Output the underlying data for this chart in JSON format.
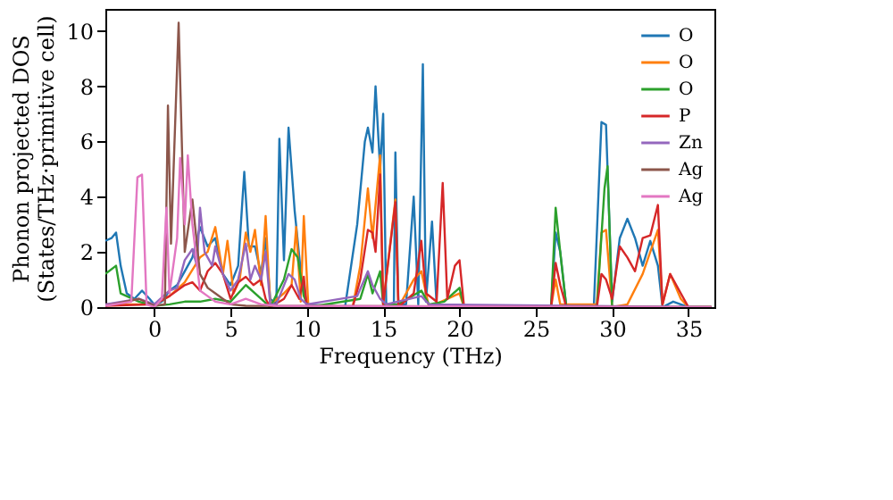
{
  "chart_data": {
    "type": "line",
    "xlabel": "Frequency (THz)",
    "ylabel": "Phonon projected DOS\n(States/THz·primitive cell)",
    "xlim": [
      -3.2,
      36.7
    ],
    "xticks": [
      0,
      5,
      10,
      15,
      20,
      25,
      30,
      35
    ],
    "ylim": [
      0,
      10.8
    ],
    "yticks": [
      0,
      2,
      4,
      6,
      8,
      10
    ],
    "grid": false,
    "legend": "top right",
    "line_style": "solid",
    "marker": "none",
    "series": [
      {
        "name": "O",
        "color": "#1f77b4",
        "x": [
          -3.2,
          -2.8,
          -2.5,
          -2.2,
          -1.8,
          -1.3,
          -0.8,
          -0.3,
          0,
          0.5,
          1,
          1.5,
          2,
          2.5,
          3,
          3.5,
          4,
          4.5,
          5,
          5.5,
          5.9,
          6.2,
          6.6,
          7,
          7.3,
          7.6,
          8,
          8.2,
          8.5,
          8.8,
          9.2,
          9.6,
          10,
          12.5,
          13.3,
          13.8,
          14,
          14.3,
          14.5,
          14.8,
          15,
          15.2,
          15.7,
          15.8,
          16,
          16.5,
          17,
          17.3,
          17.6,
          17.8,
          18.2,
          18.5,
          20.5,
          26,
          26.3,
          26.6,
          27,
          28.8,
          29.3,
          29.6,
          30,
          30.5,
          31,
          31.5,
          32,
          32.5,
          33,
          33.3,
          34,
          35,
          36.5
        ],
        "values": [
          2.4,
          2.5,
          2.7,
          1.5,
          0.5,
          0.3,
          0.6,
          0.3,
          0.1,
          0.2,
          0.6,
          0.8,
          1.3,
          1.8,
          2.9,
          2.2,
          2.5,
          1.2,
          0.8,
          1.5,
          4.9,
          2.2,
          2.2,
          1.2,
          2.5,
          0.3,
          0.1,
          6.1,
          1.7,
          6.5,
          3.5,
          1.3,
          0.1,
          0,
          3,
          6.0,
          6.5,
          5.6,
          8.0,
          5.0,
          7.0,
          0.1,
          0.1,
          5.6,
          0.1,
          0.1,
          4.0,
          0.1,
          8.8,
          0.2,
          3.1,
          0.1,
          0,
          0,
          2.7,
          2.0,
          0,
          0,
          6.7,
          6.6,
          0.2,
          2.5,
          3.2,
          2.5,
          1.5,
          2.4,
          1.5,
          0,
          0.2,
          0,
          0
        ]
      },
      {
        "name": "O",
        "color": "#ff7f0e",
        "x": [
          -3.2,
          0,
          1,
          2,
          3,
          3.5,
          4,
          4.5,
          4.8,
          5.2,
          5.6,
          6,
          6.3,
          6.6,
          7,
          7.3,
          7.6,
          8.5,
          9,
          9.3,
          9.6,
          9.8,
          10.1,
          13,
          13.5,
          14,
          14.3,
          14.8,
          15,
          15.8,
          16,
          17,
          17.5,
          18,
          20,
          20.3,
          26,
          26.3,
          26.6,
          29,
          29.3,
          29.6,
          30,
          31,
          32,
          32.5,
          33,
          33.3,
          33.8,
          34.5,
          35,
          36.5
        ],
        "values": [
          0.1,
          0.1,
          0.4,
          0.9,
          1.8,
          2.0,
          2.9,
          1.2,
          2.4,
          0.5,
          1.0,
          2.7,
          2.0,
          2.8,
          0.8,
          3.3,
          0.1,
          0.5,
          0.8,
          2.9,
          0.2,
          3.3,
          0,
          0,
          1.5,
          4.3,
          2.5,
          5.5,
          0.1,
          3.9,
          0,
          1,
          1.3,
          0,
          0.5,
          0,
          0,
          1.0,
          0.1,
          0.1,
          2.7,
          2.8,
          0,
          0.1,
          1.2,
          2.0,
          2.8,
          0.1,
          1.2,
          0.3,
          0,
          0
        ]
      },
      {
        "name": "O",
        "color": "#2ca02c",
        "x": [
          -3.2,
          -2.5,
          -2.2,
          -1,
          0,
          1,
          2,
          3,
          4,
          5,
          6,
          7,
          7.6,
          8.5,
          9,
          9.4,
          9.8,
          10.1,
          13.5,
          14,
          14.3,
          14.8,
          15,
          16,
          17.5,
          18,
          19,
          20,
          20.3,
          26,
          26.3,
          26.6,
          27,
          29,
          29.5,
          29.7,
          30,
          36.5
        ],
        "values": [
          1.2,
          1.5,
          0.5,
          0.2,
          0.05,
          0.1,
          0.2,
          0.2,
          0.3,
          0.2,
          0.8,
          0.3,
          0,
          1.0,
          2.1,
          1.8,
          0.4,
          0,
          0.3,
          1.2,
          0.5,
          1.3,
          0.1,
          0.1,
          0.6,
          0.1,
          0.2,
          0.7,
          0,
          0,
          3.6,
          2.0,
          0,
          0,
          4.3,
          5.1,
          0,
          0
        ]
      },
      {
        "name": "P",
        "color": "#d62728",
        "x": [
          -3.2,
          0,
          1,
          2,
          2.5,
          3,
          3.5,
          4,
          4.5,
          5,
          5.5,
          6,
          6.5,
          7,
          7.3,
          7.6,
          8.5,
          9,
          9.5,
          9.8,
          10,
          13,
          13.5,
          14,
          14.3,
          14.5,
          14.8,
          15,
          15.8,
          16,
          17,
          17.5,
          17.8,
          18.5,
          18.9,
          19.2,
          19.7,
          20,
          20.3,
          26,
          26.3,
          26.6,
          27,
          29,
          29.3,
          29.6,
          30,
          30.5,
          31,
          31.5,
          32,
          32.5,
          33,
          33.3,
          33.8,
          34.5,
          35,
          36.5
        ],
        "values": [
          0.05,
          0.1,
          0.4,
          0.8,
          0.9,
          0.6,
          1.3,
          1.6,
          1.2,
          0.3,
          0.9,
          1.1,
          0.8,
          1.0,
          0.3,
          0,
          0.3,
          0.8,
          0.3,
          1.1,
          0,
          0,
          1.0,
          2.8,
          2.7,
          2.0,
          4.8,
          0.1,
          3.8,
          0,
          0.5,
          2.4,
          0.5,
          0.2,
          4.5,
          0.3,
          1.5,
          1.7,
          0,
          0,
          1.6,
          0.8,
          0,
          0,
          1.2,
          1.0,
          0.3,
          2.2,
          1.8,
          1.3,
          2.5,
          2.6,
          3.7,
          0.1,
          1.2,
          0.5,
          0,
          0
        ]
      },
      {
        "name": "Zn",
        "color": "#9467bd",
        "x": [
          -3.2,
          -1,
          0,
          1,
          1.5,
          2,
          2.5,
          2.8,
          3,
          3.3,
          3.8,
          4,
          4.5,
          5,
          5.5,
          6,
          6.3,
          6.6,
          7,
          7.3,
          7.6,
          8,
          8.8,
          9.2,
          9.6,
          10,
          13.3,
          14,
          14.3,
          14.8,
          15.2,
          17.5,
          18,
          36.5
        ],
        "values": [
          0.1,
          0.3,
          0.1,
          0.6,
          0.7,
          1.7,
          2.1,
          1.5,
          3.6,
          2.0,
          1.5,
          2.2,
          1.2,
          0.6,
          1.0,
          2.3,
          1.0,
          1.5,
          1.0,
          2.0,
          0.1,
          0.1,
          1.2,
          1.0,
          0.3,
          0.1,
          0.4,
          1.3,
          0.8,
          0.3,
          0.1,
          0.4,
          0.1,
          0
        ]
      },
      {
        "name": "Ag",
        "color": "#8c564b",
        "x": [
          -3.2,
          -1,
          0,
          0.7,
          0.9,
          1.1,
          1.6,
          2,
          2.5,
          3,
          3.5,
          4,
          4.5,
          5,
          6,
          36.5
        ],
        "values": [
          0.05,
          0.3,
          0.05,
          0.1,
          7.3,
          2.3,
          10.3,
          2.0,
          3.9,
          1.2,
          0.7,
          0.5,
          0.3,
          0.1,
          0.05,
          0
        ]
      },
      {
        "name": "Ag",
        "color": "#e377c2",
        "x": [
          -3.2,
          -1.5,
          -1.1,
          -0.8,
          -0.5,
          0,
          0.5,
          0.8,
          1.0,
          1.5,
          1.7,
          2,
          2.2,
          2.5,
          3,
          3.5,
          4,
          5,
          6,
          7,
          8,
          36.5
        ],
        "values": [
          0.05,
          0.2,
          4.7,
          4.8,
          0.1,
          0,
          0.3,
          3.6,
          0.5,
          2.5,
          5.4,
          3.0,
          5.5,
          3.0,
          0.6,
          0.4,
          0.2,
          0.1,
          0.3,
          0.1,
          0.05,
          0
        ]
      }
    ]
  }
}
